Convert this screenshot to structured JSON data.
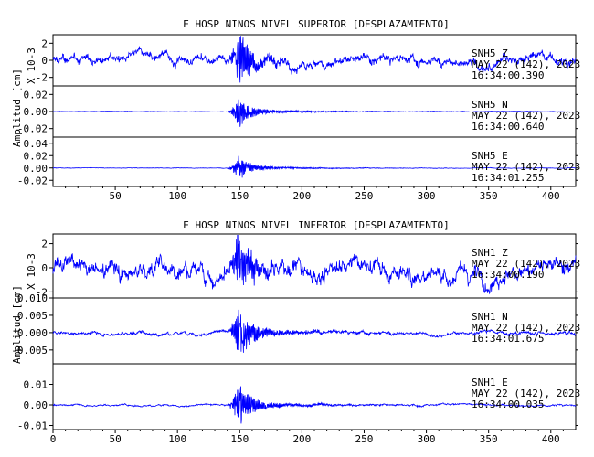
{
  "chart_data": [
    {
      "type": "line",
      "title": "E HOSP NINOS NIVEL SUPERIOR [DESPLAZAMIENTO]",
      "ylabel": "Amplitud [cm]",
      "xlim": [
        0,
        420
      ],
      "x_ticks": [
        "50",
        "100",
        "150",
        "200",
        "250",
        "300",
        "350",
        "400"
      ],
      "peak_time_s": 149,
      "panels": [
        {
          "name": "SNH5 Z",
          "station": "SNH5",
          "component": "Z",
          "date": "MAY 22 (142), 2023",
          "time": "16:34:00.390",
          "scale_label": "X 10-3",
          "ylim": [
            -3,
            3
          ],
          "y_ticks": [
            "2",
            "0",
            "-2"
          ],
          "noise": 0.7,
          "peak": 3.2
        },
        {
          "name": "SNH5 N",
          "station": "SNH5",
          "component": "N",
          "date": "MAY 22 (142), 2023",
          "time": "16:34:00.640",
          "scale_label": "",
          "ylim": [
            -0.03,
            0.03
          ],
          "y_ticks": [
            "0.02",
            "0.00",
            "-0.02"
          ],
          "noise": 0.0004,
          "peak": 0.018
        },
        {
          "name": "SNH5 E",
          "station": "SNH5",
          "component": "E",
          "date": "MAY 22 (142), 2023",
          "time": "16:34:01.255",
          "scale_label": "",
          "ylim": [
            -0.03,
            0.05
          ],
          "y_ticks": [
            "0.04",
            "0.02",
            "0.00",
            "-0.02"
          ],
          "noise": 0.0005,
          "peak": 0.02
        }
      ]
    },
    {
      "type": "line",
      "title": "E HOSP NINOS NIVEL INFERIOR [DESPLAZAMIENTO]",
      "ylabel": "Amplitud [cm]",
      "xlim": [
        0,
        420
      ],
      "x_ticks": [
        "0",
        "50",
        "100",
        "150",
        "200",
        "250",
        "300",
        "350",
        "400"
      ],
      "peak_time_s": 149,
      "panels": [
        {
          "name": "SNH1 Z",
          "station": "SNH1",
          "component": "Z",
          "date": "MAY 22 (142), 2023",
          "time": "16:34:00.190",
          "scale_label": "X 10-3",
          "ylim": [
            -2.5,
            2.8
          ],
          "y_ticks": [
            "2",
            "0",
            "-2"
          ],
          "noise": 0.9,
          "peak": 2.5
        },
        {
          "name": "SNH1 N",
          "station": "SNH1",
          "component": "N",
          "date": "MAY 22 (142), 2023",
          "time": "16:34:01.675",
          "scale_label": "",
          "ylim": [
            -0.009,
            0.01
          ],
          "y_ticks": [
            "0.010",
            "0.005",
            "0.000",
            "-0.005"
          ],
          "noise": 0.0006,
          "peak": 0.008
        },
        {
          "name": "SNH1 E",
          "station": "SNH1",
          "component": "E",
          "date": "MAY 22 (142), 2023",
          "time": "16:34:00.035",
          "scale_label": "",
          "ylim": [
            -0.012,
            0.02
          ],
          "y_ticks": [
            "0.01",
            "0.00",
            "-0.01"
          ],
          "noise": 0.0005,
          "peak": 0.011
        }
      ]
    }
  ]
}
